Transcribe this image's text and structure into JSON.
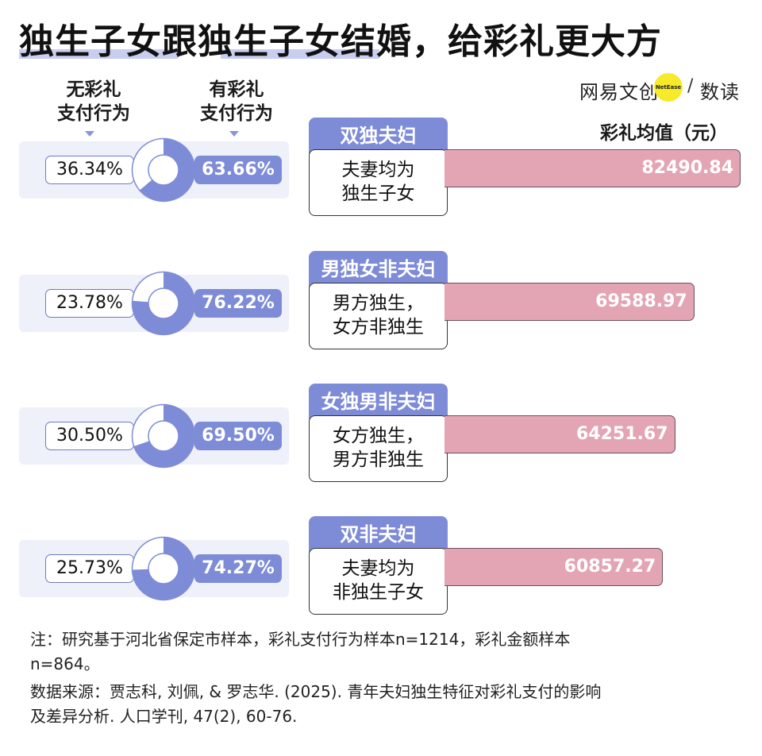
{
  "title": "独生子女跟独生子女结婚，给彩礼更大方",
  "brand": {
    "name": "网易文创",
    "badge": "NetEase",
    "slash": "/",
    "sub": "数读"
  },
  "headers": {
    "no_gift": [
      "无彩礼",
      "支付行为"
    ],
    "with_gift": [
      "有彩礼",
      "支付行为"
    ],
    "mean_value": "彩礼均值（元）"
  },
  "colors": {
    "accent": "#7e8bd6",
    "bar": "#e3a5b4",
    "row_bg": "#eef0fa",
    "highlight": "#c9cdf0"
  },
  "chart_data": {
    "type": "bar",
    "categories": [
      "双独夫妇",
      "男独女非夫妇",
      "女独男非夫妇",
      "双非夫妇"
    ],
    "descriptions": [
      [
        "夫妻均为",
        "独生子女"
      ],
      [
        "男方独生，",
        "女方非独生"
      ],
      [
        "女方独生，",
        "男方非独生"
      ],
      [
        "夫妻均为",
        "非独生子女"
      ]
    ],
    "series": [
      {
        "name": "彩礼均值（元）",
        "values": [
          82490.84,
          69588.97,
          64251.67,
          60857.27
        ],
        "labels": [
          "82490.84",
          "69588.97",
          "64251.67",
          "60857.27"
        ]
      },
      {
        "name": "无彩礼支付行为",
        "values": [
          36.34,
          23.78,
          30.5,
          25.73
        ],
        "labels": [
          "36.34%",
          "23.78%",
          "30.50%",
          "25.73%"
        ]
      },
      {
        "name": "有彩礼支付行为",
        "values": [
          63.66,
          76.22,
          69.5,
          74.27
        ],
        "labels": [
          "63.66%",
          "76.22%",
          "69.50%",
          "74.27%"
        ]
      }
    ]
  },
  "notes": {
    "note": [
      "注：研究基于河北省保定市样本，彩礼支付行为样本n=1214，彩礼金额样本",
      "n=864。"
    ],
    "source": [
      "数据来源：贾志科, 刘佩, & 罗志华. (2025). 青年夫妇独生特征对彩礼支付的影响",
      "及差异分析. 人口学刊, 47(2), 60-76."
    ]
  }
}
